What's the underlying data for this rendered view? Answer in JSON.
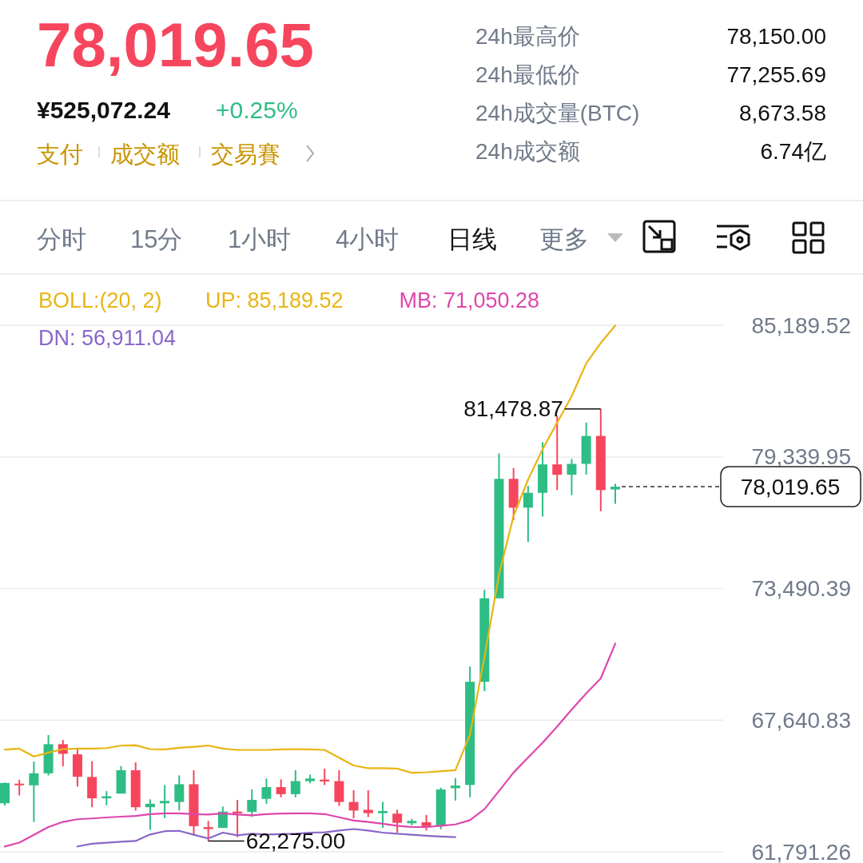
{
  "chart_data": {
    "type": "candlestick",
    "title": "78,019.65",
    "subtitle": "¥525,072.24",
    "categories": [
      null,
      null,
      null,
      null,
      null,
      null,
      null,
      null,
      null,
      null,
      null,
      null,
      null,
      null,
      null,
      null,
      null,
      null,
      null,
      null,
      null,
      null,
      null,
      null,
      null,
      null,
      null,
      null,
      null,
      null,
      null,
      null,
      null,
      null,
      null,
      null,
      null,
      null,
      null,
      null,
      null,
      null,
      null
    ],
    "ylim": [
      61791.26,
      87400
    ],
    "yticks": [
      {
        "value": 85189.52,
        "label": "85,189.52"
      },
      {
        "value": 79339.95,
        "label": "79,339.95"
      },
      {
        "value": 73490.39,
        "label": "73,490.39"
      },
      {
        "value": 67640.83,
        "label": "67,640.83"
      },
      {
        "value": 61791.26,
        "label": "61,791.26"
      }
    ],
    "tick_labels": "y",
    "grid": "y",
    "legend": "top",
    "legend_title": "BOLL:(20, 2)",
    "series": [
      {
        "ohlc": [
          [
            63948,
            64870,
            63850,
            64850
          ],
          [
            64820,
            64990,
            64295,
            64770
          ],
          [
            64747,
            65801,
            63115,
            65280
          ],
          [
            65280,
            66980,
            65186,
            66574
          ],
          [
            66574,
            66758,
            65592,
            66147
          ],
          [
            66123,
            66342,
            64691,
            65128
          ],
          [
            65117,
            65821,
            63775,
            64169
          ],
          [
            64170,
            64493,
            63858,
            64260
          ],
          [
            64378,
            65603,
            64378,
            65419
          ],
          [
            65419,
            65766,
            63626,
            63775
          ],
          [
            63775,
            64122,
            62768,
            63927
          ],
          [
            63948,
            64760,
            63289,
            64052
          ],
          [
            64007,
            65187,
            63626,
            64795
          ],
          [
            64795,
            65419,
            62561,
            62932
          ],
          [
            62887,
            63165,
            62275,
            62804
          ],
          [
            62852,
            63810,
            62852,
            63580
          ],
          [
            63580,
            64100,
            62440,
            63500
          ],
          [
            63568,
            64562,
            63348,
            64101
          ],
          [
            64146,
            65048,
            63927,
            64666
          ],
          [
            64666,
            65013,
            64215,
            64354
          ],
          [
            64354,
            65419,
            64215,
            64933
          ],
          [
            64933,
            65221,
            64840,
            65048
          ],
          [
            65000,
            65488,
            64760,
            64920
          ],
          [
            64933,
            65419,
            63835,
            64007
          ],
          [
            64007,
            64528,
            63278,
            63626
          ],
          [
            63660,
            64528,
            63337,
            63511
          ],
          [
            63511,
            64007,
            62852,
            63602
          ],
          [
            63487,
            63660,
            62644,
            63081
          ],
          [
            63061,
            63254,
            62966,
            63165
          ],
          [
            63105,
            63428,
            62735,
            62932
          ],
          [
            62932,
            64643,
            62794,
            64562
          ],
          [
            64621,
            65072,
            64066,
            64736
          ],
          [
            64763,
            70029,
            64214,
            69349
          ],
          [
            69349,
            73435,
            68937,
            73061
          ],
          [
            73061,
            79506,
            73061,
            78369
          ],
          [
            78369,
            78851,
            76534,
            77089
          ],
          [
            77089,
            78057,
            75566,
            77748
          ],
          [
            77748,
            80003,
            76693,
            79011
          ],
          [
            79011,
            81179,
            77869,
            78551
          ],
          [
            78551,
            79257,
            77647,
            79035
          ],
          [
            79035,
            80870,
            78551,
            80277
          ],
          [
            80277,
            81478.87,
            76929,
            77869
          ],
          [
            77897,
            78150,
            77255.69,
            78019.65
          ]
        ],
        "colors": [
          "#2ebd85",
          "#f6465d",
          "#2ebd85",
          "#2ebd85",
          "#f6465d",
          "#f6465d",
          "#f6465d",
          "#2ebd85",
          "#2ebd85",
          "#f6465d",
          "#2ebd85",
          "#2ebd85",
          "#2ebd85",
          "#f6465d",
          "#f6465d",
          "#2ebd85",
          "#f6465d",
          "#2ebd85",
          "#2ebd85",
          "#f6465d",
          "#2ebd85",
          "#2ebd85",
          "#f6465d",
          "#f6465d",
          "#f6465d",
          "#f6465d",
          "#2ebd85",
          "#f6465d",
          "#2ebd85",
          "#f6465d",
          "#2ebd85",
          "#2ebd85",
          "#2ebd85",
          "#2ebd85",
          "#2ebd85",
          "#f6465d",
          "#2ebd85",
          "#2ebd85",
          "#f6465d",
          "#2ebd85",
          "#2ebd85",
          "#f6465d",
          "#2ebd85"
        ]
      },
      {
        "type": "line",
        "name": "UP: 85,189.52",
        "color": "#e8b512",
        "values": [
          66331,
          66376,
          66029,
          66202,
          66356,
          66376,
          66376,
          66400,
          66515,
          66529,
          66356,
          66342,
          66411,
          66460,
          66515,
          66376,
          66320,
          66320,
          66320,
          66342,
          66356,
          66342,
          66320,
          65974,
          65627,
          65509,
          65509,
          65488,
          65302,
          65326,
          65371,
          65419,
          66991,
          70460,
          74116,
          76718,
          78334,
          79688,
          80867,
          82046,
          83503,
          84405,
          85189.52
        ]
      },
      {
        "type": "line",
        "name": "MB: 71,050.28",
        "color": "#de47ac",
        "values": [
          62025,
          62199,
          62545,
          62892,
          63121,
          63239,
          63274,
          63319,
          63354,
          63388,
          63468,
          63503,
          63503,
          63468,
          63447,
          63503,
          63447,
          63413,
          63468,
          63493,
          63503,
          63503,
          63468,
          63329,
          63180,
          63121,
          63041,
          62948,
          62892,
          62892,
          62948,
          63007,
          63197,
          63689,
          64494,
          65312,
          65982,
          66637,
          67359,
          68112,
          68830,
          69499,
          71050.28
        ]
      },
      {
        "type": "line",
        "name": "DN: 56,911.04",
        "color": "#8a67c9",
        "values": [
          null,
          null,
          null,
          null,
          null,
          62030,
          62151,
          62193,
          62238,
          62273,
          62561,
          62707,
          62724,
          62551,
          62388,
          62644,
          62526,
          62595,
          62561,
          62575,
          62595,
          62644,
          62654,
          62734,
          62803,
          62734,
          62644,
          62595,
          62551,
          62506,
          62471,
          62447,
          null,
          null,
          null,
          null,
          null,
          null,
          null,
          null,
          null,
          null,
          null
        ]
      }
    ],
    "ref_lines": [
      {
        "axis": "y",
        "value": 78019.65,
        "label": "78,019.65",
        "line_style": "dashed",
        "color": "#333333"
      }
    ],
    "annotations": [
      "81,478.87",
      "62,275.00",
      "+0.25%",
      "支付",
      "成交额",
      "交易賽",
      "24h最高价",
      "78,150.00",
      "24h最低价",
      "77,255.69",
      "24h成交量(BTC)",
      "8,673.58",
      "24h成交额",
      "6.74亿",
      "分时",
      "15分",
      "1小时",
      "4小时",
      "日线",
      "更多"
    ]
  }
}
